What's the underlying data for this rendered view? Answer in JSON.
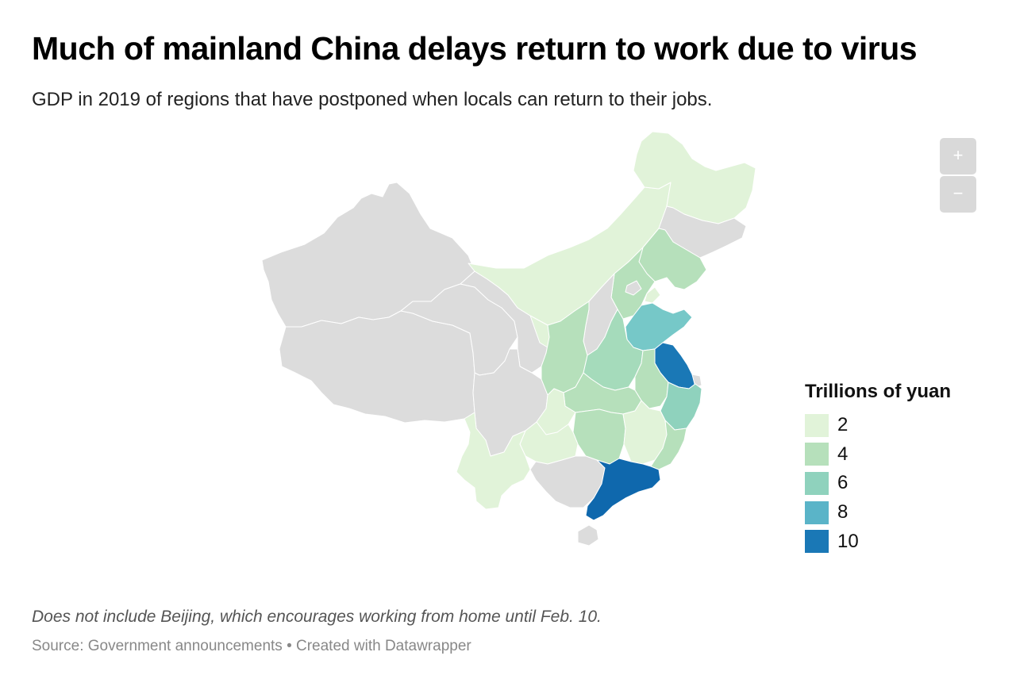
{
  "header": {
    "title": "Much of mainland China delays return to work due to virus",
    "subtitle": "GDP in 2019 of regions that have postponed when locals can return to their jobs."
  },
  "controls": {
    "zoom_in": "+",
    "zoom_out": "−"
  },
  "legend": {
    "title": "Trillions of yuan",
    "items": [
      {
        "label": "2",
        "color": "#e1f3d9"
      },
      {
        "label": "4",
        "color": "#b6e0bb"
      },
      {
        "label": "6",
        "color": "#8fd2bd"
      },
      {
        "label": "8",
        "color": "#5ab4c8"
      },
      {
        "label": "10",
        "color": "#1a78b6"
      }
    ]
  },
  "colors": {
    "no_data": "#dcdcdc",
    "border": "#ffffff"
  },
  "footer": {
    "note": "Does not include Beijing, which encourages working from home until Feb. 10.",
    "source": "Source: Government announcements • Created with Datawrapper"
  }
}
